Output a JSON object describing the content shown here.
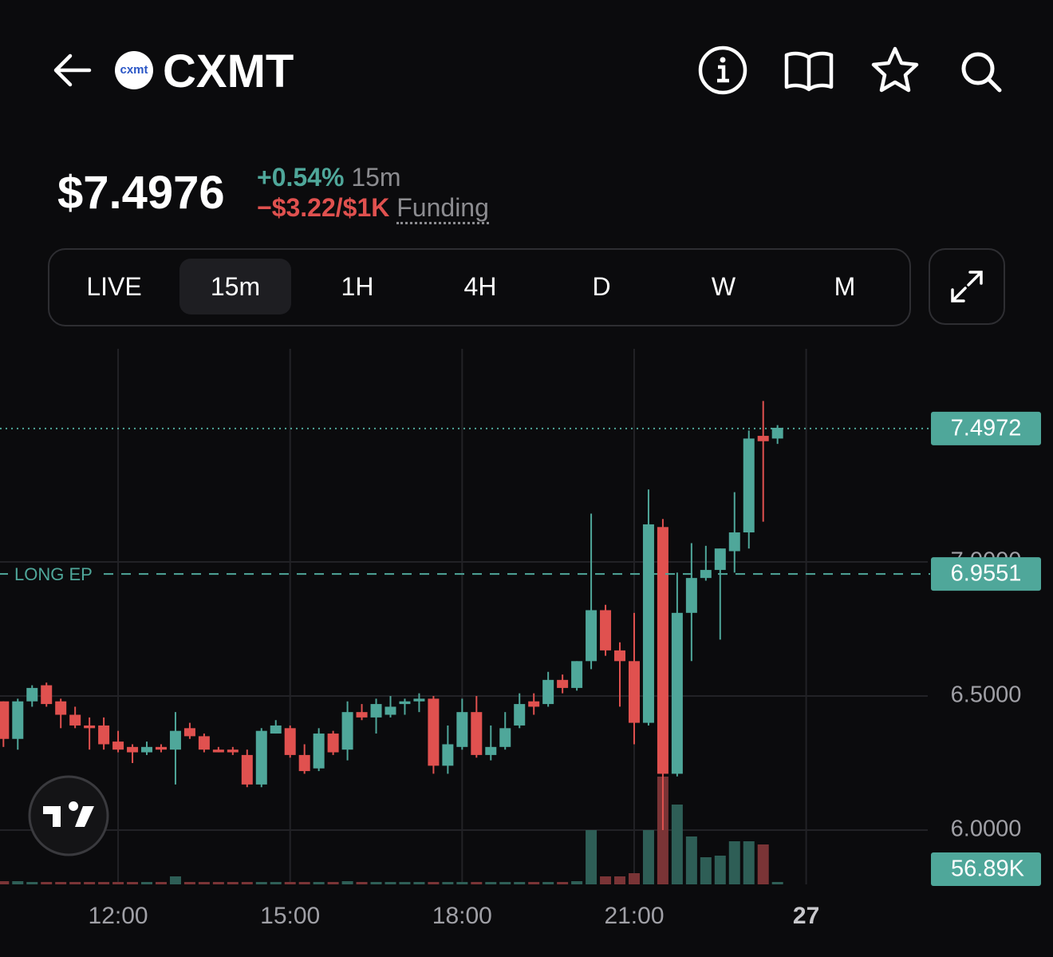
{
  "header": {
    "logo_text": "cxmt",
    "title": "CXMT"
  },
  "price": {
    "value": "$7.4976",
    "change": "+0.54%",
    "interval": "15m",
    "funding_rate": "−$3.22/$1K",
    "funding_label": "Funding"
  },
  "tabs": {
    "items": [
      "LIVE",
      "15m",
      "1H",
      "4H",
      "D",
      "W",
      "M"
    ],
    "active": 1
  },
  "chart_data": {
    "type": "candlestick",
    "x": [
      10,
      10.25,
      10.5,
      10.75,
      11,
      11.25,
      11.5,
      11.75,
      12,
      12.25,
      12.5,
      12.75,
      13,
      13.25,
      13.5,
      13.75,
      14,
      14.25,
      14.5,
      14.75,
      15,
      15.25,
      15.5,
      15.75,
      16,
      16.25,
      16.5,
      16.75,
      17,
      17.25,
      17.5,
      17.75,
      18,
      18.25,
      18.5,
      18.75,
      19,
      19.25,
      19.5,
      19.75,
      20,
      20.25,
      20.5,
      20.75,
      21,
      21.25,
      21.5,
      21.75,
      22,
      22.25,
      22.5,
      22.75,
      23,
      23.25,
      23.5
    ],
    "open": [
      6.48,
      6.34,
      6.48,
      6.54,
      6.48,
      6.43,
      6.39,
      6.39,
      6.33,
      6.31,
      6.29,
      6.31,
      6.3,
      6.38,
      6.35,
      6.3,
      6.3,
      6.28,
      6.17,
      6.36,
      6.38,
      6.28,
      6.23,
      6.36,
      6.3,
      6.44,
      6.42,
      6.43,
      6.47,
      6.48,
      6.49,
      6.24,
      6.31,
      6.44,
      6.28,
      6.31,
      6.39,
      6.48,
      6.47,
      6.56,
      6.53,
      6.63,
      6.82,
      6.67,
      6.63,
      6.4,
      7.13,
      6.21,
      6.81,
      6.94,
      6.97,
      7.04,
      7.11,
      7.47,
      7.46
    ],
    "high": [
      6.48,
      6.49,
      6.54,
      6.55,
      6.49,
      6.46,
      6.42,
      6.42,
      6.37,
      6.32,
      6.33,
      6.32,
      6.44,
      6.4,
      6.36,
      6.31,
      6.31,
      6.3,
      6.38,
      6.41,
      6.39,
      6.32,
      6.38,
      6.37,
      6.48,
      6.47,
      6.49,
      6.5,
      6.49,
      6.51,
      6.5,
      6.39,
      6.49,
      6.5,
      6.39,
      6.44,
      6.51,
      6.51,
      6.59,
      6.58,
      6.63,
      7.18,
      6.84,
      6.7,
      6.81,
      7.27,
      7.16,
      6.96,
      7.07,
      7.06,
      7.05,
      7.26,
      7.49,
      7.6,
      7.51
    ],
    "low": [
      6.31,
      6.3,
      6.46,
      6.46,
      6.38,
      6.38,
      6.3,
      6.3,
      6.29,
      6.25,
      6.28,
      6.29,
      6.17,
      6.34,
      6.29,
      6.29,
      6.28,
      6.16,
      6.16,
      6.36,
      6.27,
      6.21,
      6.22,
      6.28,
      6.26,
      6.41,
      6.36,
      6.42,
      6.43,
      6.44,
      6.21,
      6.21,
      6.3,
      6.27,
      6.26,
      6.3,
      6.38,
      6.43,
      6.46,
      6.51,
      6.52,
      6.6,
      6.65,
      6.46,
      6.32,
      6.39,
      6.0,
      6.2,
      6.63,
      6.93,
      6.71,
      6.96,
      7.05,
      7.15,
      7.44
    ],
    "close": [
      6.34,
      6.48,
      6.53,
      6.47,
      6.43,
      6.39,
      6.38,
      6.32,
      6.3,
      6.29,
      6.31,
      6.3,
      6.37,
      6.35,
      6.3,
      6.29,
      6.29,
      6.17,
      6.37,
      6.39,
      6.28,
      6.22,
      6.36,
      6.29,
      6.44,
      6.42,
      6.47,
      6.46,
      6.48,
      6.49,
      6.24,
      6.32,
      6.44,
      6.28,
      6.31,
      6.38,
      6.47,
      6.46,
      6.56,
      6.53,
      6.63,
      6.82,
      6.67,
      6.63,
      6.4,
      7.14,
      6.21,
      6.81,
      6.94,
      6.97,
      7.05,
      7.11,
      7.46,
      7.45,
      7.5
    ],
    "volume": [
      4,
      4,
      3,
      3,
      3,
      3,
      3,
      3,
      3,
      3,
      3,
      3,
      10,
      3,
      3,
      3,
      3,
      3,
      3,
      3,
      3,
      3,
      3,
      3,
      4,
      3,
      3,
      3,
      3,
      3,
      3,
      3,
      3,
      3,
      3,
      3,
      3,
      3,
      3,
      3,
      4,
      68,
      10,
      10,
      14,
      68,
      135,
      100,
      60,
      34,
      36,
      54,
      54,
      50,
      3
    ],
    "up_color": "#4fa79a",
    "down_color": "#e0514f",
    "up_volume_color": "#2e5e56",
    "down_volume_color": "#7a3436",
    "xlim": [
      9.94,
      26.12
    ],
    "ylim": [
      5.7976,
      7.7946
    ],
    "vlim": [
      0,
      200
    ],
    "xticks": [
      {
        "value": 12,
        "label": "12:00"
      },
      {
        "value": 15,
        "label": "15:00"
      },
      {
        "value": 18,
        "label": "18:00"
      },
      {
        "value": 21,
        "label": "21:00"
      },
      {
        "value": 24,
        "label": "27"
      }
    ],
    "yticks": [
      {
        "value": 6,
        "label": "6.0000"
      },
      {
        "value": 6.5,
        "label": "6.5000"
      },
      {
        "value": 7,
        "label": "7.0000"
      }
    ],
    "last_price": 7.4972,
    "entry_price": 6.9551,
    "entry_label": "LONG EP",
    "volume_label": "56.89K",
    "grid": true
  }
}
